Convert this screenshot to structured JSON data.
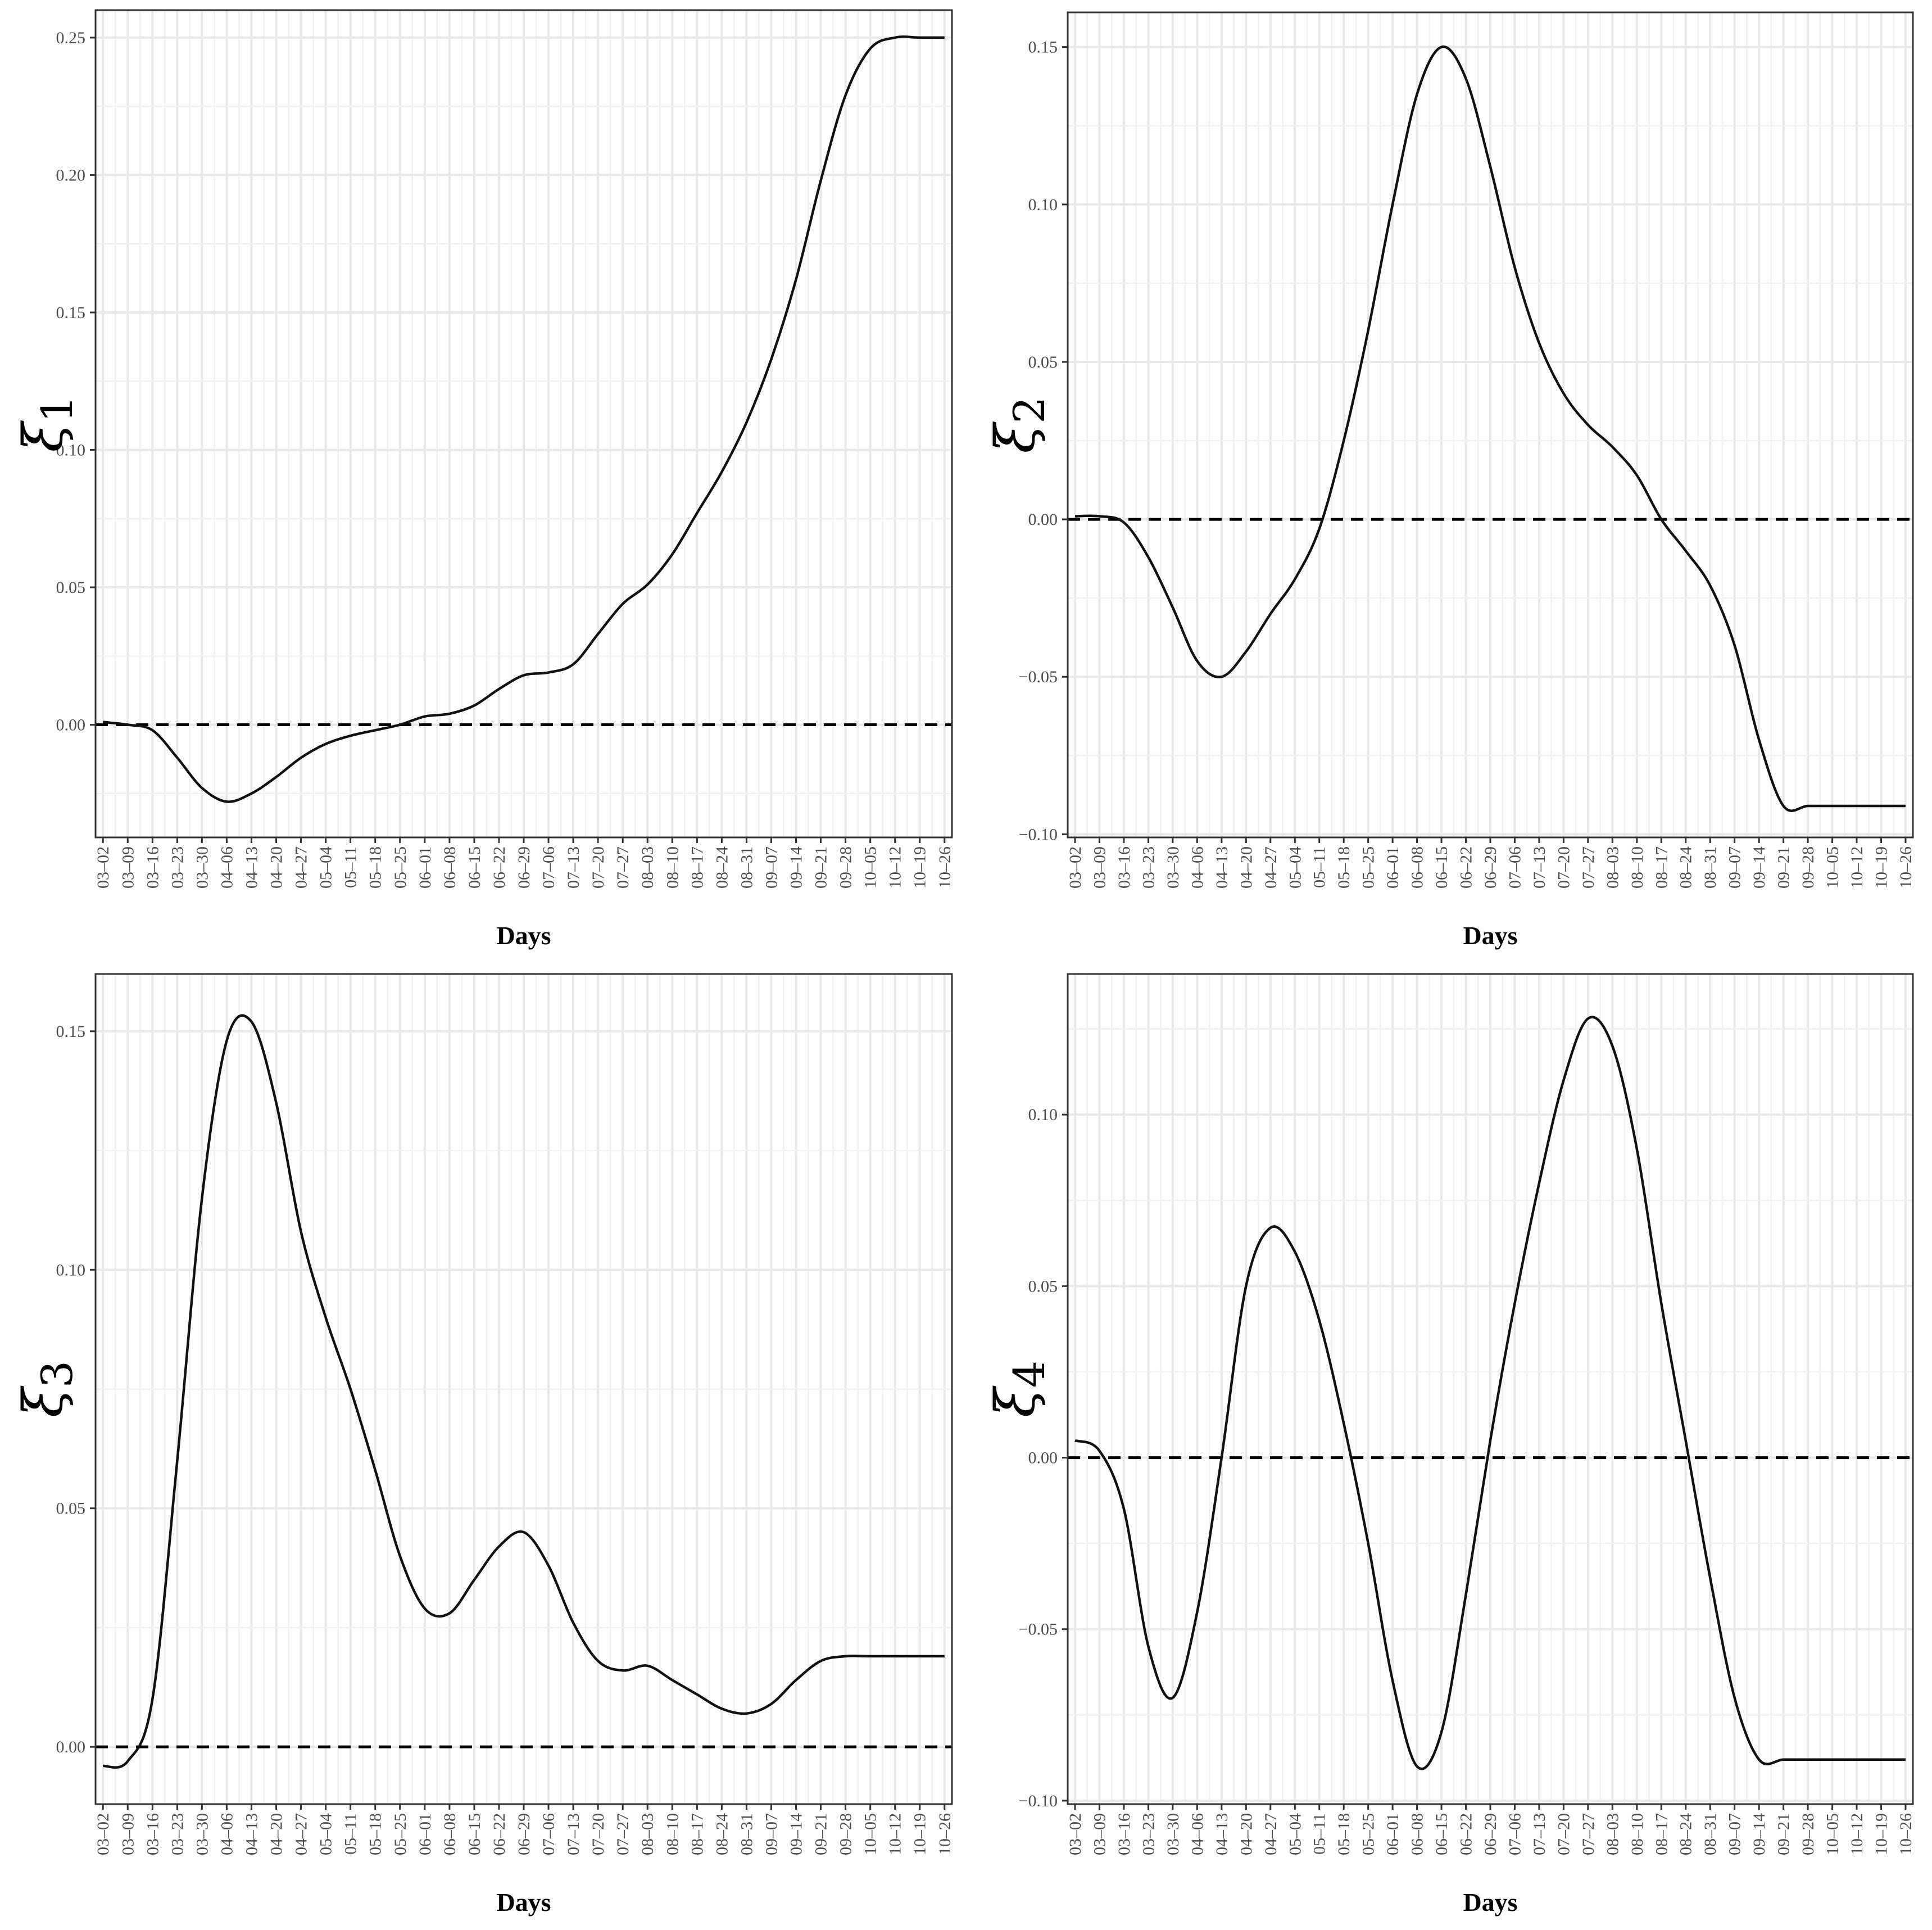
{
  "chart_data": [
    {
      "type": "line",
      "ylabel_symbol": "ξ",
      "ylabel_subscript": "1",
      "xlabel": "Days",
      "x_ticks": [
        "03–02",
        "03–09",
        "03–16",
        "03–23",
        "03–30",
        "04–06",
        "04–13",
        "04–20",
        "04–27",
        "05–04",
        "05–11",
        "05–18",
        "05–25",
        "06–01",
        "06–08",
        "06–15",
        "06–22",
        "06–29",
        "07–06",
        "07–13",
        "07–20",
        "07–27",
        "08–03",
        "08–10",
        "08–17",
        "08–24",
        "08–31",
        "09–07",
        "09–14",
        "09–21",
        "09–28",
        "10–05",
        "10–12",
        "10–19",
        "10–26"
      ],
      "y_ticks": [
        "0.00",
        "0.05",
        "0.10",
        "0.15",
        "0.20",
        "0.25"
      ],
      "ylim": [
        -0.041,
        0.26
      ],
      "reference_line": {
        "y": 0,
        "style": "dashed"
      },
      "grid": true,
      "series": [
        {
          "x": [
            0,
            1,
            2,
            3,
            4,
            5,
            6,
            7,
            8,
            9,
            10,
            11,
            12,
            13,
            14,
            15,
            16,
            17,
            18,
            19,
            20,
            21,
            22,
            23,
            24,
            25,
            26,
            27,
            28,
            29,
            30,
            31,
            32,
            33,
            34,
            35,
            35.6
          ],
          "values": [
            0.001,
            0.0,
            -0.002,
            -0.012,
            -0.023,
            -0.028,
            -0.025,
            -0.019,
            -0.012,
            -0.007,
            -0.004,
            -0.002,
            0.0,
            0.003,
            0.004,
            0.007,
            0.013,
            0.018,
            0.019,
            0.022,
            0.033,
            0.044,
            0.051,
            0.062,
            0.077,
            0.092,
            0.11,
            0.133,
            0.162,
            0.198,
            0.229,
            0.246,
            0.25,
            0.25,
            0.25,
            0.25,
            0.25
          ]
        }
      ]
    },
    {
      "type": "line",
      "ylabel_symbol": "ξ",
      "ylabel_subscript": "2",
      "xlabel": "Days",
      "x_ticks": [
        "03–02",
        "03–09",
        "03–16",
        "03–23",
        "03–30",
        "04–06",
        "04–13",
        "04–20",
        "04–27",
        "05–04",
        "05–11",
        "05–18",
        "05–25",
        "06–01",
        "06–08",
        "06–15",
        "06–22",
        "06–29",
        "07–06",
        "07–13",
        "07–20",
        "07–27",
        "08–03",
        "08–10",
        "08–17",
        "08–24",
        "08–31",
        "09–07",
        "09–14",
        "09–21",
        "09–28",
        "10–05",
        "10–12",
        "10–19",
        "10–26"
      ],
      "y_ticks": [
        "−0.10",
        "−0.05",
        "0.00",
        "0.05",
        "0.10",
        "0.15"
      ],
      "ylim": [
        -0.101,
        0.161
      ],
      "reference_line": {
        "y": 0,
        "style": "dashed"
      },
      "grid": true,
      "series": [
        {
          "x": [
            0,
            1,
            2,
            3,
            4,
            5,
            6,
            7,
            8,
            9,
            10,
            11,
            12,
            13,
            14,
            15,
            16,
            17,
            18,
            19,
            20,
            21,
            22,
            23,
            24,
            25,
            26,
            27,
            28,
            29,
            30,
            31,
            32,
            33,
            34,
            35
          ],
          "values": [
            0.001,
            0.001,
            -0.001,
            -0.012,
            -0.028,
            -0.045,
            -0.05,
            -0.042,
            -0.03,
            -0.019,
            -0.003,
            0.025,
            0.06,
            0.1,
            0.135,
            0.15,
            0.14,
            0.112,
            0.08,
            0.056,
            0.04,
            0.03,
            0.023,
            0.014,
            0.0,
            -0.01,
            -0.021,
            -0.04,
            -0.07,
            -0.091,
            -0.091,
            -0.091,
            -0.091,
            -0.091,
            -0.091,
            -0.091
          ]
        }
      ]
    },
    {
      "type": "line",
      "ylabel_symbol": "ξ",
      "ylabel_subscript": "3",
      "xlabel": "Days",
      "x_ticks": [
        "03–02",
        "03–09",
        "03–16",
        "03–23",
        "03–30",
        "04–06",
        "04–13",
        "04–20",
        "04–27",
        "05–04",
        "05–11",
        "05–18",
        "05–25",
        "06–01",
        "06–08",
        "06–15",
        "06–22",
        "06–29",
        "07–06",
        "07–13",
        "07–20",
        "07–27",
        "08–03",
        "08–10",
        "08–17",
        "08–24",
        "08–31",
        "09–07",
        "09–14",
        "09–21",
        "09–28",
        "10–05",
        "10–12",
        "10–19",
        "10–26"
      ],
      "y_ticks": [
        "0.00",
        "0.05",
        "0.10",
        "0.15"
      ],
      "ylim": [
        -0.012,
        0.162
      ],
      "reference_line": {
        "y": 0,
        "style": "dashed"
      },
      "grid": true,
      "series": [
        {
          "x": [
            0,
            1,
            2,
            3,
            4,
            5,
            6,
            7,
            8,
            9,
            10,
            11,
            12,
            13,
            14,
            15,
            16,
            17,
            18,
            19,
            20,
            21,
            22,
            23,
            24,
            25,
            26,
            27,
            28,
            29,
            30,
            31,
            32,
            33,
            34,
            35.6
          ],
          "values": [
            -0.004,
            -0.003,
            0.01,
            0.06,
            0.115,
            0.148,
            0.152,
            0.135,
            0.108,
            0.09,
            0.075,
            0.058,
            0.04,
            0.029,
            0.028,
            0.035,
            0.042,
            0.045,
            0.038,
            0.026,
            0.018,
            0.016,
            0.017,
            0.014,
            0.011,
            0.008,
            0.007,
            0.009,
            0.014,
            0.018,
            0.019,
            0.019,
            0.019,
            0.019,
            0.019,
            0.019
          ]
        }
      ]
    },
    {
      "type": "line",
      "ylabel_symbol": "ξ",
      "ylabel_subscript": "4",
      "xlabel": "Days",
      "x_ticks": [
        "03–02",
        "03–09",
        "03–16",
        "03–23",
        "03–30",
        "04–06",
        "04–13",
        "04–20",
        "04–27",
        "05–04",
        "05–11",
        "05–18",
        "05–25",
        "06–01",
        "06–08",
        "06–15",
        "06–22",
        "06–29",
        "07–06",
        "07–13",
        "07–20",
        "07–27",
        "08–03",
        "08–10",
        "08–17",
        "08–24",
        "08–31",
        "09–07",
        "09–14",
        "09–21",
        "09–28",
        "10–05",
        "10–12",
        "10–19",
        "10–26"
      ],
      "y_ticks": [
        "−0.10",
        "−0.05",
        "0.00",
        "0.05",
        "0.10"
      ],
      "ylim": [
        -0.101,
        0.141
      ],
      "reference_line": {
        "y": 0,
        "style": "dashed"
      },
      "grid": true,
      "series": [
        {
          "x": [
            0,
            1,
            2,
            3,
            4,
            5,
            6,
            7,
            8,
            9,
            10,
            11,
            12,
            13,
            14,
            15,
            16,
            17,
            18,
            19,
            20,
            21,
            22,
            23,
            24,
            25,
            26,
            27,
            28,
            29,
            30,
            31,
            32,
            33,
            34,
            35
          ],
          "values": [
            0.005,
            0.002,
            -0.015,
            -0.055,
            -0.07,
            -0.045,
            0.0,
            0.05,
            0.067,
            0.06,
            0.04,
            0.01,
            -0.025,
            -0.065,
            -0.09,
            -0.08,
            -0.04,
            0.005,
            0.045,
            0.08,
            0.11,
            0.128,
            0.12,
            0.09,
            0.045,
            0.005,
            -0.035,
            -0.07,
            -0.088,
            -0.088,
            -0.088,
            -0.088,
            -0.088,
            -0.088,
            -0.088,
            -0.088
          ]
        }
      ]
    }
  ]
}
